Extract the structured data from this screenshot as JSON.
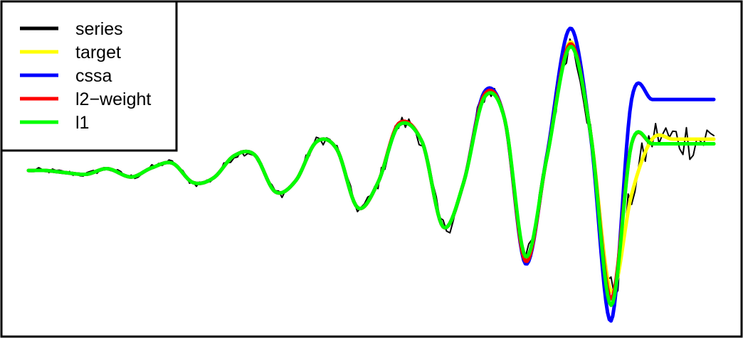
{
  "chart_data": {
    "type": "line",
    "title": "",
    "xlabel": "",
    "ylabel": "",
    "x_range": [
      0,
      200
    ],
    "y_range": [
      -1.62,
      1.55
    ],
    "grid": false,
    "axes_shown": false,
    "legend_position": "top-left",
    "series": [
      {
        "name": "series",
        "color": "#000000",
        "line_width": 2,
        "note": "noisy observed signal"
      },
      {
        "name": "target",
        "color": "#ffff00",
        "line_width": 5
      },
      {
        "name": "cssa",
        "color": "#0000ff",
        "line_width": 5
      },
      {
        "name": "l2−weight",
        "color": "#ff0000",
        "line_width": 5
      },
      {
        "name": "l1",
        "color": "#00ff00",
        "line_width": 5
      }
    ],
    "knots": {
      "x": [
        0,
        5,
        10,
        17,
        23,
        30,
        36,
        42,
        48,
        54,
        60,
        66,
        72,
        78,
        84,
        90,
        96,
        102,
        108,
        115,
        121,
        127,
        133,
        139,
        145,
        151,
        158,
        164,
        170,
        176,
        182,
        188,
        193,
        197,
        200
      ],
      "target": [
        0.01,
        0.01,
        -0.01,
        -0.03,
        0.03,
        -0.06,
        0.04,
        0.09,
        -0.12,
        -0.07,
        0.17,
        0.18,
        -0.22,
        -0.1,
        0.32,
        0.24,
        -0.39,
        -0.12,
        0.5,
        0.31,
        -0.6,
        -0.12,
        0.84,
        0.56,
        -0.94,
        0.1,
        1.4,
        0.42,
        -1.3,
        -0.25,
        0.35,
        0.35,
        0.35,
        0.35,
        0.35
      ],
      "cssa": [
        0.01,
        0.01,
        -0.01,
        -0.03,
        0.03,
        -0.06,
        0.04,
        0.09,
        -0.12,
        -0.07,
        0.17,
        0.18,
        -0.22,
        -0.1,
        0.32,
        0.24,
        -0.39,
        -0.12,
        0.5,
        0.31,
        -0.6,
        -0.12,
        0.86,
        0.56,
        -1.0,
        0.12,
        1.55,
        0.4,
        -1.62,
        0.78,
        0.78,
        0.78,
        0.78,
        0.78,
        0.78
      ],
      "l2_weight": [
        0.01,
        0.01,
        -0.01,
        -0.03,
        0.03,
        -0.06,
        0.04,
        0.09,
        -0.12,
        -0.07,
        0.17,
        0.18,
        -0.22,
        -0.1,
        0.32,
        0.24,
        -0.39,
        -0.12,
        0.52,
        0.31,
        -0.6,
        -0.12,
        0.83,
        0.56,
        -0.97,
        0.1,
        1.38,
        0.42,
        -1.38,
        0.3,
        0.3,
        0.3,
        0.3,
        0.3,
        0.3
      ],
      "l1": [
        0.01,
        0.01,
        -0.01,
        -0.03,
        0.03,
        -0.06,
        0.04,
        0.09,
        -0.12,
        -0.07,
        0.17,
        0.18,
        -0.22,
        -0.1,
        0.32,
        0.24,
        -0.39,
        -0.12,
        0.5,
        0.31,
        -0.6,
        -0.12,
        0.8,
        0.56,
        -0.92,
        0.1,
        1.35,
        0.42,
        -1.45,
        0.3,
        0.3,
        0.3,
        0.3,
        0.3,
        0.3
      ]
    }
  }
}
